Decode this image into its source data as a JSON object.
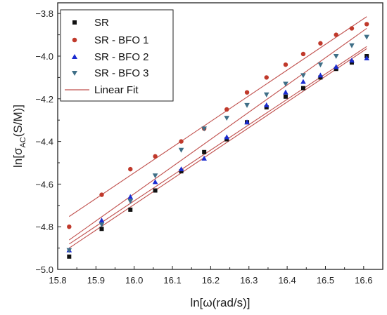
{
  "chart_data": {
    "type": "scatter",
    "xlabel": "ln[ω(rad/s)]",
    "ylabel": {
      "prefix": "ln[σ",
      "sub": "AC",
      "suffix": "(S/M)]"
    },
    "xlim": [
      15.8,
      16.65
    ],
    "ylim": [
      -5.0,
      -3.75
    ],
    "xticks": [
      "15.8",
      "15.9",
      "16.0",
      "16.1",
      "16.2",
      "16.3",
      "16.4",
      "16.5",
      "16.6"
    ],
    "yticks": [
      "-3.8",
      "-4.0",
      "-4.2",
      "-4.4",
      "-4.6",
      "-4.8",
      "-5.0"
    ],
    "grid": false,
    "legend_position": "top-left",
    "x": [
      15.83,
      15.915,
      15.99,
      16.055,
      16.123,
      16.183,
      16.242,
      16.295,
      16.346,
      16.396,
      16.442,
      16.487,
      16.528,
      16.569,
      16.608
    ],
    "series": [
      {
        "name": "SR",
        "marker": "square",
        "color": "#111111",
        "values": [
          -4.94,
          -4.81,
          -4.72,
          -4.63,
          -4.54,
          -4.45,
          -4.39,
          -4.31,
          -4.24,
          -4.19,
          -4.15,
          -4.1,
          -4.06,
          -4.03,
          -4.0
        ]
      },
      {
        "name": "SR - BFO 1",
        "marker": "circle",
        "color": "#c0392b",
        "values": [
          -4.8,
          -4.65,
          -4.53,
          -4.47,
          -4.4,
          -4.34,
          -4.25,
          -4.17,
          -4.1,
          -4.04,
          -3.99,
          -3.94,
          -3.9,
          -3.87,
          -3.85
        ]
      },
      {
        "name": "SR - BFO 2",
        "marker": "triangle-up",
        "color": "#1a2bd0",
        "values": [
          -4.91,
          -4.77,
          -4.66,
          -4.59,
          -4.53,
          -4.48,
          -4.38,
          -4.31,
          -4.23,
          -4.17,
          -4.12,
          -4.09,
          -4.05,
          -4.02,
          -4.01
        ]
      },
      {
        "name": "SR - BFO 3",
        "marker": "triangle-down",
        "color": "#3f6f87",
        "values": [
          -4.91,
          -4.79,
          -4.68,
          -4.56,
          -4.44,
          -4.34,
          -4.29,
          -4.23,
          -4.18,
          -4.13,
          -4.09,
          -4.04,
          -4.0,
          -3.95,
          -3.91
        ]
      }
    ],
    "fit_lines": [
      {
        "x": [
          15.83,
          16.608
        ],
        "y": [
          -4.752,
          -3.815
        ]
      },
      {
        "x": [
          15.83,
          16.608
        ],
        "y": [
          -4.862,
          -3.87
        ]
      },
      {
        "x": [
          15.83,
          16.608
        ],
        "y": [
          -4.881,
          -3.955
        ]
      },
      {
        "x": [
          15.83,
          16.608
        ],
        "y": [
          -4.9,
          -3.965
        ]
      }
    ],
    "fit_color": "#c0504d",
    "legend": [
      "SR",
      "SR - BFO 1",
      "SR - BFO 2",
      "SR - BFO 3",
      "Linear Fit"
    ]
  }
}
